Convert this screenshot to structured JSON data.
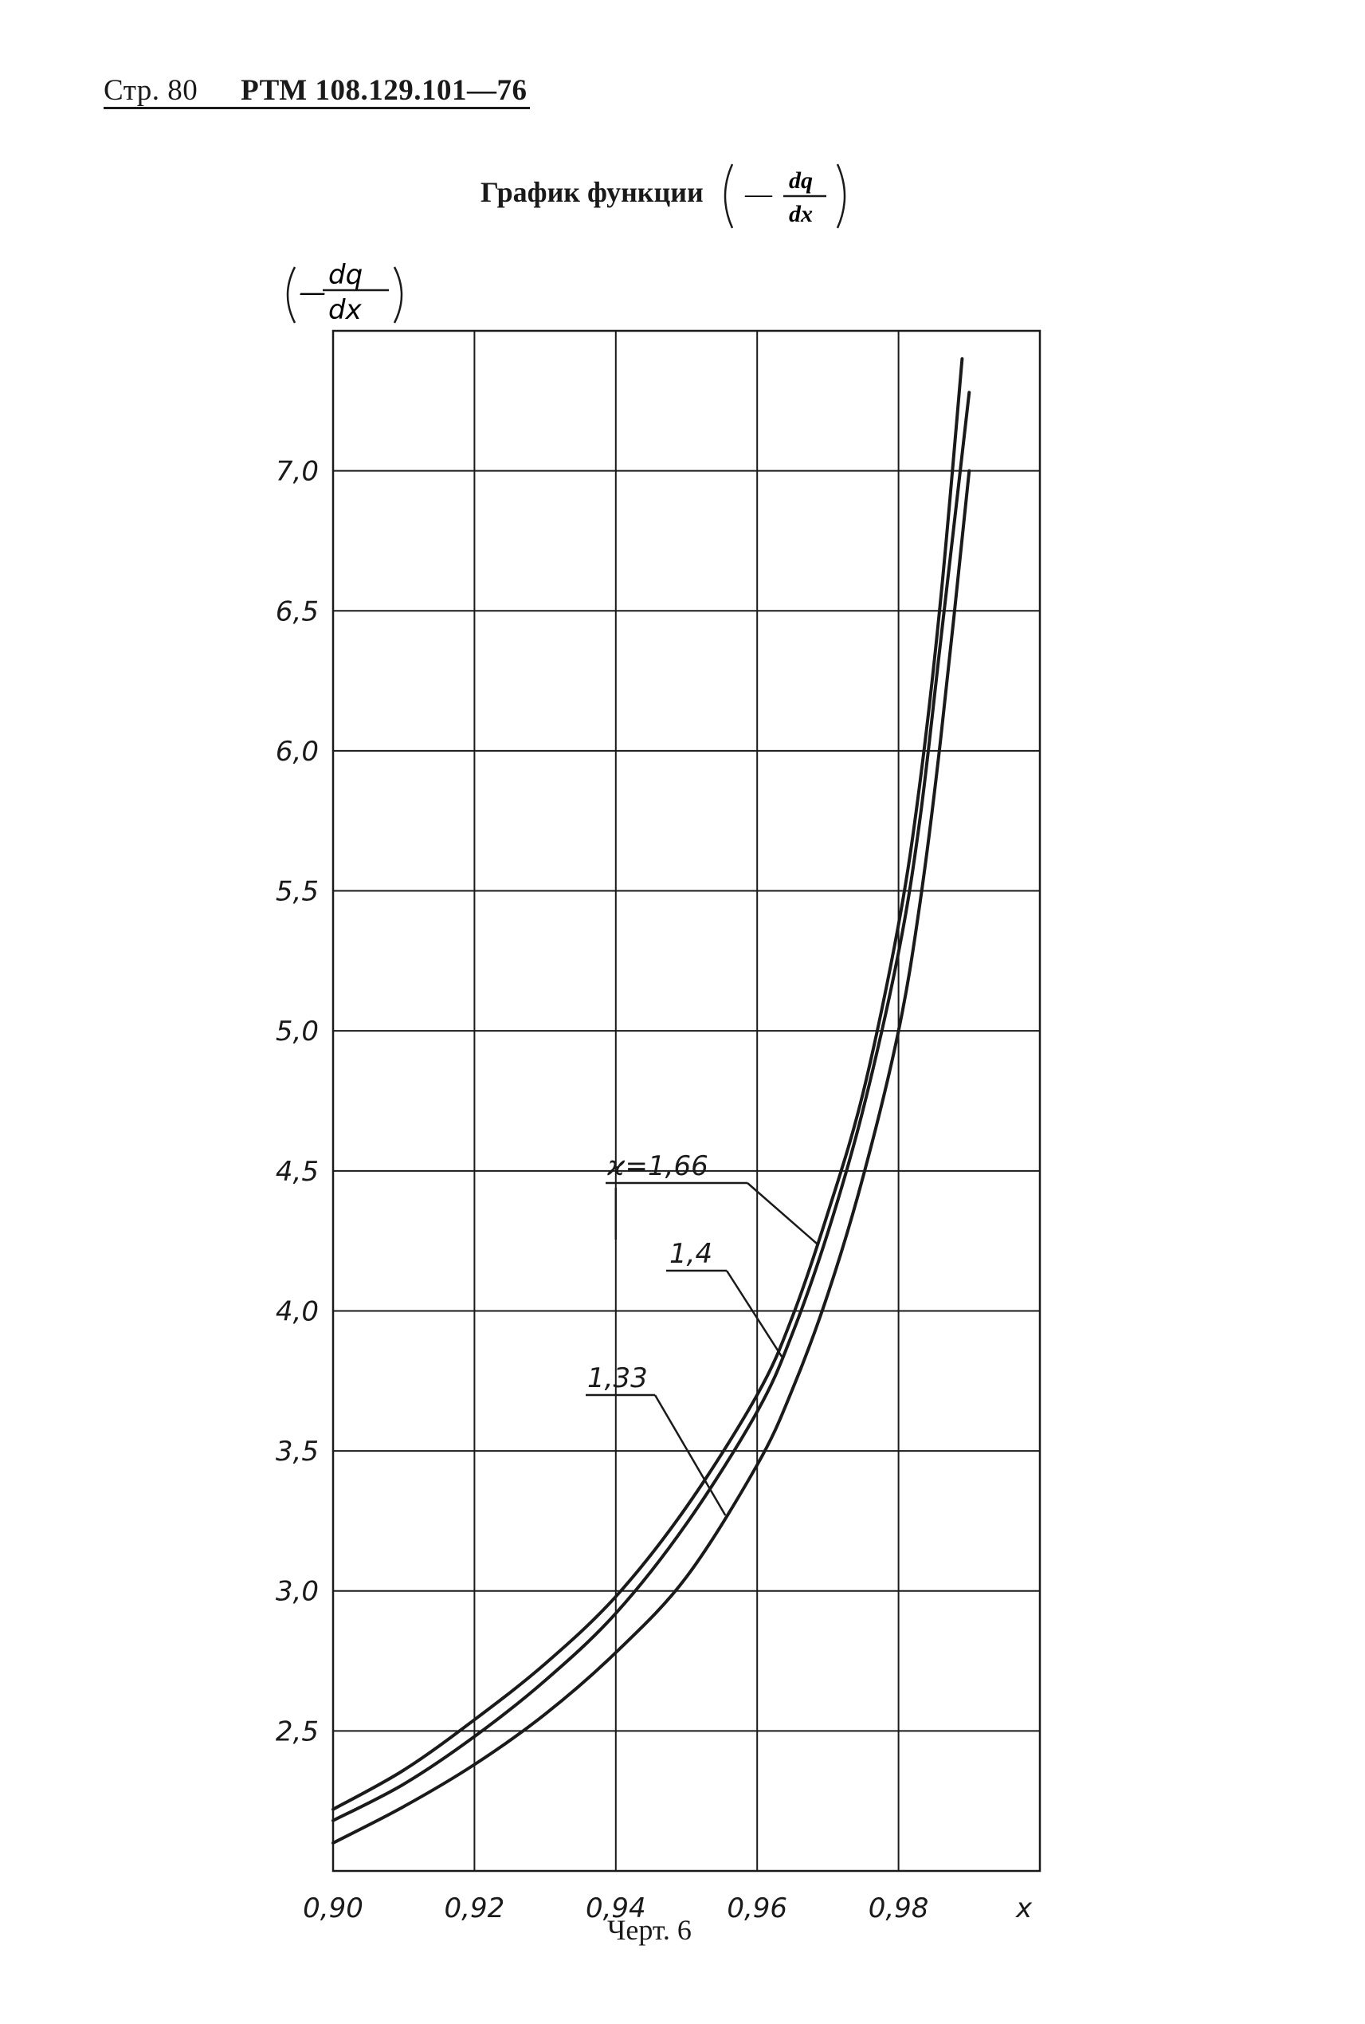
{
  "header": {
    "page": "Стр. 80",
    "code": "РТМ 108.129.101—76"
  },
  "title": {
    "text": "График функции",
    "formula_sign": "—",
    "formula_num": "dq",
    "formula_den": "dx"
  },
  "caption": "Черт. 6",
  "chart_data": {
    "type": "line",
    "title": "График функции (— dq/dx)",
    "ylabel": "(— dq/dx)",
    "xlabel": "x",
    "xlim": [
      0.9,
      1.0
    ],
    "ylim": [
      2.0,
      7.5
    ],
    "grid": true,
    "x_ticks": [
      {
        "value": 0.9,
        "label": "0,90"
      },
      {
        "value": 0.92,
        "label": "0,92"
      },
      {
        "value": 0.94,
        "label": "0,94"
      },
      {
        "value": 0.96,
        "label": "0,96"
      },
      {
        "value": 0.98,
        "label": "0,98"
      }
    ],
    "x_axis_name": "x",
    "y_ticks": [
      {
        "value": 2.5,
        "label": "2,5"
      },
      {
        "value": 3.0,
        "label": "3,0"
      },
      {
        "value": 3.5,
        "label": "3,5"
      },
      {
        "value": 4.0,
        "label": "4,0"
      },
      {
        "value": 4.5,
        "label": "4,5"
      },
      {
        "value": 5.0,
        "label": "5,0"
      },
      {
        "value": 5.5,
        "label": "5,5"
      },
      {
        "value": 6.0,
        "label": "6,0"
      },
      {
        "value": 6.5,
        "label": "6,5"
      },
      {
        "value": 7.0,
        "label": "7,0"
      }
    ],
    "y_axis_label": {
      "sign": "—",
      "num": "dq",
      "den": "dx"
    },
    "series": [
      {
        "name": "ϰ=1,66",
        "x": [
          0.9,
          0.91,
          0.92,
          0.93,
          0.94,
          0.95,
          0.96,
          0.965,
          0.97,
          0.975,
          0.98,
          0.983,
          0.986,
          0.989
        ],
        "y": [
          2.22,
          2.36,
          2.54,
          2.74,
          2.98,
          3.3,
          3.7,
          3.98,
          4.35,
          4.78,
          5.38,
          5.88,
          6.55,
          7.4
        ]
      },
      {
        "name": "1,4",
        "x": [
          0.9,
          0.91,
          0.92,
          0.93,
          0.94,
          0.95,
          0.96,
          0.965,
          0.97,
          0.975,
          0.98,
          0.983,
          0.986,
          0.99
        ],
        "y": [
          2.18,
          2.31,
          2.48,
          2.68,
          2.92,
          3.24,
          3.64,
          3.92,
          4.28,
          4.72,
          5.28,
          5.75,
          6.4,
          7.28
        ]
      },
      {
        "name": "1,33",
        "x": [
          0.9,
          0.91,
          0.92,
          0.93,
          0.94,
          0.95,
          0.96,
          0.965,
          0.97,
          0.975,
          0.98,
          0.983,
          0.986,
          0.99
        ],
        "y": [
          2.1,
          2.23,
          2.38,
          2.56,
          2.78,
          3.05,
          3.45,
          3.72,
          4.06,
          4.48,
          5.0,
          5.45,
          6.05,
          7.0
        ]
      }
    ],
    "annotations": [
      "ϰ=1,66",
      "1,4",
      "1,33"
    ],
    "colors": {
      "line": "#1a1a1a",
      "grid": "#1a1a1a"
    }
  }
}
